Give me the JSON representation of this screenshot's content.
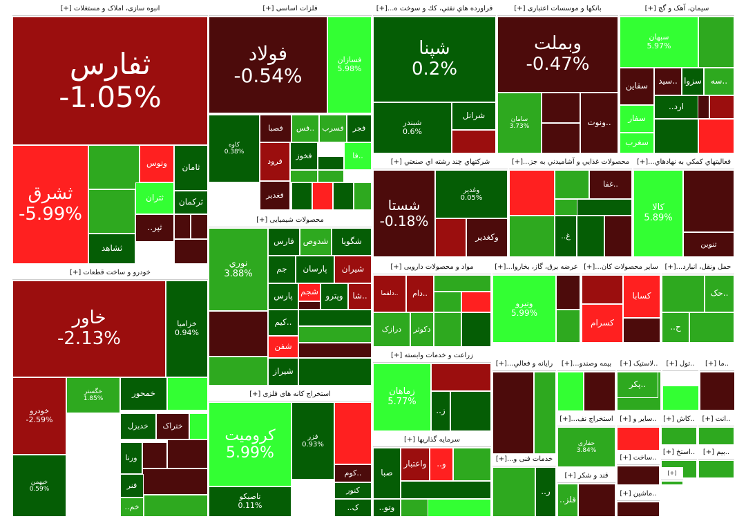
{
  "colors": {
    "strong_up": "#33ff33",
    "up": "#2ea91f",
    "slight_up": "#055d05",
    "slight_down": "#4c0b0b",
    "down": "#9b0e0e",
    "strong_down": "#ff2020"
  },
  "sectors": [
    {
      "title": "انبوه سازی، املاک و مستغلات [+]",
      "tiles": [
        {
          "symbol": "ثفارس",
          "pct": "-1.05%",
          "tone": "down"
        },
        {
          "symbol": "ثشرق",
          "pct": "-5.99%",
          "tone": "strong_down"
        },
        {
          "symbol": "وتوس",
          "pct": "",
          "tone": "strong_down"
        },
        {
          "symbol": "ثامان",
          "pct": "",
          "tone": "slight_up"
        },
        {
          "symbol": "ثتران",
          "pct": "",
          "tone": "strong_up"
        },
        {
          "symbol": "ثرکمان",
          "pct": "",
          "tone": "slight_up"
        },
        {
          "symbol": "ثشاهد",
          "pct": "",
          "tone": "slight_up"
        },
        {
          "symbol": "..ثپر",
          "pct": "",
          "tone": "slight_down"
        }
      ]
    },
    {
      "title": "فلزات اساسی [+]",
      "tiles": [
        {
          "symbol": "فولاد",
          "pct": "-0.54%",
          "tone": "slight_down"
        },
        {
          "symbol": "فسازان",
          "pct": "5.98%",
          "tone": "strong_up"
        },
        {
          "symbol": "کاوه",
          "pct": "0.38%",
          "tone": "slight_up"
        },
        {
          "symbol": "فصبا",
          "pct": "",
          "tone": "slight_down"
        },
        {
          "symbol": "فس..",
          "pct": "",
          "tone": "up"
        },
        {
          "symbol": "فسرب",
          "pct": "",
          "tone": "up"
        },
        {
          "symbol": "فجر",
          "pct": "",
          "tone": "slight_up"
        },
        {
          "symbol": "فرود",
          "pct": "",
          "tone": "down"
        },
        {
          "symbol": "فخوز",
          "pct": "",
          "tone": "slight_up"
        },
        {
          "symbol": "فا..",
          "pct": "",
          "tone": "strong_up"
        },
        {
          "symbol": "فغدیر",
          "pct": "",
          "tone": "slight_down"
        }
      ]
    },
    {
      "title": "فراورده هاي نفتي، كك و سوخت ه...[+]",
      "tiles": [
        {
          "symbol": "شپنا",
          "pct": "0.2%",
          "tone": "slight_up"
        },
        {
          "symbol": "شبندر",
          "pct": "0.6%",
          "tone": "slight_up"
        },
        {
          "symbol": "شرانل",
          "pct": "",
          "tone": "slight_up"
        }
      ]
    },
    {
      "title": "بانکها و موسسات اعتباری [+]",
      "tiles": [
        {
          "symbol": "وبملت",
          "pct": "-0.47%",
          "tone": "slight_down"
        },
        {
          "symbol": "سامان",
          "pct": "3.73%",
          "tone": "up"
        },
        {
          "symbol": "ونوت..",
          "pct": "",
          "tone": "slight_down"
        }
      ]
    },
    {
      "title": "سیمان، آهک و گچ [+]",
      "tiles": [
        {
          "symbol": "سبهان",
          "pct": "5.97%",
          "tone": "strong_up"
        },
        {
          "symbol": "سقاین",
          "pct": "",
          "tone": "slight_down"
        },
        {
          "symbol": "سید..",
          "pct": "",
          "tone": "slight_down"
        },
        {
          "symbol": "سزوا",
          "pct": "",
          "tone": "slight_up"
        },
        {
          "symbol": "سه..",
          "pct": "",
          "tone": "up"
        },
        {
          "symbol": "..ارد",
          "pct": "",
          "tone": "slight_up"
        },
        {
          "symbol": "سفار",
          "pct": "",
          "tone": "strong_up"
        },
        {
          "symbol": "سغرب",
          "pct": "",
          "tone": "strong_up"
        }
      ]
    },
    {
      "title": "خودرو و ساخت قطعات [+]",
      "tiles": [
        {
          "symbol": "خاور",
          "pct": "-2.13%",
          "tone": "down"
        },
        {
          "symbol": "خزامیا",
          "pct": "0.94%",
          "tone": "slight_up"
        },
        {
          "symbol": "خودرو",
          "pct": "-2.59%",
          "tone": "down"
        },
        {
          "symbol": "خگستر",
          "pct": "1.85%",
          "tone": "up"
        },
        {
          "symbol": "خمحور",
          "pct": "",
          "tone": "slight_up"
        },
        {
          "symbol": "خیهمن",
          "pct": "0.59%",
          "tone": "slight_up"
        },
        {
          "symbol": "ختراک",
          "pct": "",
          "tone": "slight_down"
        },
        {
          "symbol": "خدیزل",
          "pct": "",
          "tone": "slight_up"
        },
        {
          "symbol": "ورنا",
          "pct": "",
          "tone": "slight_up"
        },
        {
          "symbol": "فنر",
          "pct": "",
          "tone": "slight_up"
        },
        {
          "symbol": "..خم",
          "pct": "",
          "tone": "up"
        }
      ]
    },
    {
      "title": "محصولات شیمیایی [+]",
      "tiles": [
        {
          "symbol": "نوري",
          "pct": "3.88%",
          "tone": "up"
        },
        {
          "symbol": "فارس",
          "pct": "",
          "tone": "slight_up"
        },
        {
          "symbol": "شدوص",
          "pct": "",
          "tone": "up"
        },
        {
          "symbol": "شگویا",
          "pct": "",
          "tone": "slight_up"
        },
        {
          "symbol": "جم",
          "pct": "",
          "tone": "slight_up"
        },
        {
          "symbol": "پارسان",
          "pct": "",
          "tone": "slight_up"
        },
        {
          "symbol": "شیران",
          "pct": "",
          "tone": "down"
        },
        {
          "symbol": "پارس",
          "pct": "",
          "tone": "slight_up"
        },
        {
          "symbol": "شجم",
          "pct": "",
          "tone": "strong_down"
        },
        {
          "symbol": "وپترو",
          "pct": "",
          "tone": "slight_up"
        },
        {
          "symbol": "شا..",
          "pct": "",
          "tone": "down"
        },
        {
          "symbol": "کیم..",
          "pct": "",
          "tone": "slight_up"
        },
        {
          "symbol": "شفن",
          "pct": "",
          "tone": "strong_down"
        },
        {
          "symbol": "شیراز",
          "pct": "",
          "tone": "slight_up"
        }
      ]
    },
    {
      "title": "استخراج کانه های فلزی [+]",
      "tiles": [
        {
          "symbol": "کرومیت",
          "pct": "5.99%",
          "tone": "strong_up"
        },
        {
          "symbol": "فزر",
          "pct": "0.93%",
          "tone": "slight_up"
        },
        {
          "symbol": "کنور",
          "pct": "",
          "tone": "slight_up"
        },
        {
          "symbol": "تاصیکو",
          "pct": "0.11%",
          "tone": "slight_up"
        },
        {
          "symbol": "کوم..",
          "pct": "",
          "tone": "slight_down"
        },
        {
          "symbol": "..ک",
          "pct": "",
          "tone": "slight_up"
        }
      ]
    },
    {
      "title": "شرکتهاي چند رشته اي صنعتي [+]",
      "tiles": [
        {
          "symbol": "شستا",
          "pct": "-0.18%",
          "tone": "slight_down"
        },
        {
          "symbol": "وغدیر",
          "pct": "0.05%",
          "tone": "slight_up"
        },
        {
          "symbol": "وکغدیر",
          "pct": "",
          "tone": "slight_down"
        }
      ]
    },
    {
      "title": "محصولات غذايي و آشاميدني به جز...[+]",
      "tiles": [
        {
          "symbol": "غفا..",
          "pct": "",
          "tone": "slight_down"
        },
        {
          "symbol": "..غ",
          "pct": "",
          "tone": "slight_up"
        }
      ]
    },
    {
      "title": "فعالیتهاي کمکي به نهادهاي...[+]",
      "tiles": [
        {
          "symbol": "کالا",
          "pct": "5.89%",
          "tone": "strong_up"
        },
        {
          "symbol": "تنوين",
          "pct": "",
          "tone": "slight_down"
        }
      ]
    },
    {
      "title": "مواد و محصولات دارویی [+]",
      "tiles": [
        {
          "symbol": "دام..",
          "pct": "",
          "tone": "down"
        },
        {
          "symbol": "دلقما..",
          "pct": "",
          "tone": "down"
        },
        {
          "symbol": "دکوثر",
          "pct": "",
          "tone": "up"
        },
        {
          "symbol": "درازک",
          "pct": "",
          "tone": "up"
        }
      ]
    },
    {
      "title": "عرضه برق، گاز، بخاروا...[+]",
      "tiles": [
        {
          "symbol": "ونیرو",
          "pct": "5.99%",
          "tone": "strong_up"
        }
      ]
    },
    {
      "title": "سایر محصولات کان...[+]",
      "tiles": [
        {
          "symbol": "کسابا",
          "pct": "",
          "tone": "strong_down"
        },
        {
          "symbol": "کسرام",
          "pct": "",
          "tone": "strong_down"
        }
      ]
    },
    {
      "title": "حمل ونقل، انبارد...[+]",
      "tiles": [
        {
          "symbol": "حک..",
          "pct": "",
          "tone": "up"
        },
        {
          "symbol": "..ح",
          "pct": "",
          "tone": "up"
        }
      ]
    },
    {
      "title": "زراعت و خدمات وابسته [+]",
      "tiles": [
        {
          "symbol": "زماهان",
          "pct": "5.77%",
          "tone": "strong_up"
        },
        {
          "symbol": "..ز",
          "pct": "",
          "tone": "slight_up"
        }
      ]
    },
    {
      "title": "سرمایه گذاریها [+]",
      "tiles": [
        {
          "symbol": "صبا",
          "pct": "",
          "tone": "slight_up"
        },
        {
          "symbol": "واعتبار",
          "pct": "",
          "tone": "down"
        },
        {
          "symbol": "..و",
          "pct": "",
          "tone": "strong_down"
        },
        {
          "symbol": "..وتو",
          "pct": "",
          "tone": "slight_up"
        }
      ]
    },
    {
      "title": "رایانه و فعالي...[+]",
      "tiles": [
        {
          "symbol": "..ر",
          "pct": "",
          "tone": "slight_up"
        }
      ]
    },
    {
      "title": "بیمه وصندو...[+]",
      "tiles": []
    },
    {
      "title": "..لاستیک [+]",
      "tiles": [
        {
          "symbol": "پکر..",
          "pct": "",
          "tone": "up"
        }
      ]
    },
    {
      "title": "..تول [+]",
      "tiles": []
    },
    {
      "title": "..ما [+]",
      "tiles": []
    },
    {
      "title": "استخراج نف...[+]",
      "tiles": [
        {
          "symbol": "حفاری",
          "pct": "3.84%",
          "tone": "up"
        }
      ]
    },
    {
      "title": "..سایر و [+]",
      "tiles": []
    },
    {
      "title": "..کاش [+]",
      "tiles": []
    },
    {
      "title": "..انت [+]",
      "tiles": []
    },
    {
      "title": "خدمات فنی و...[+]",
      "tiles": [
        {
          "symbol": "..ر",
          "pct": "",
          "tone": "slight_up"
        }
      ]
    },
    {
      "title": "..ساخت [+]",
      "tiles": []
    },
    {
      "title": "..استخ [+]",
      "tiles": []
    },
    {
      "title": "..بیم [+]",
      "tiles": []
    },
    {
      "title": "قند و شکر [+]",
      "tiles": [
        {
          "symbol": "..قلز",
          "pct": "",
          "tone": "up"
        }
      ]
    },
    {
      "title": "..ماشین [+]",
      "tiles": []
    },
    {
      "title": "[+]",
      "tiles": []
    }
  ]
}
